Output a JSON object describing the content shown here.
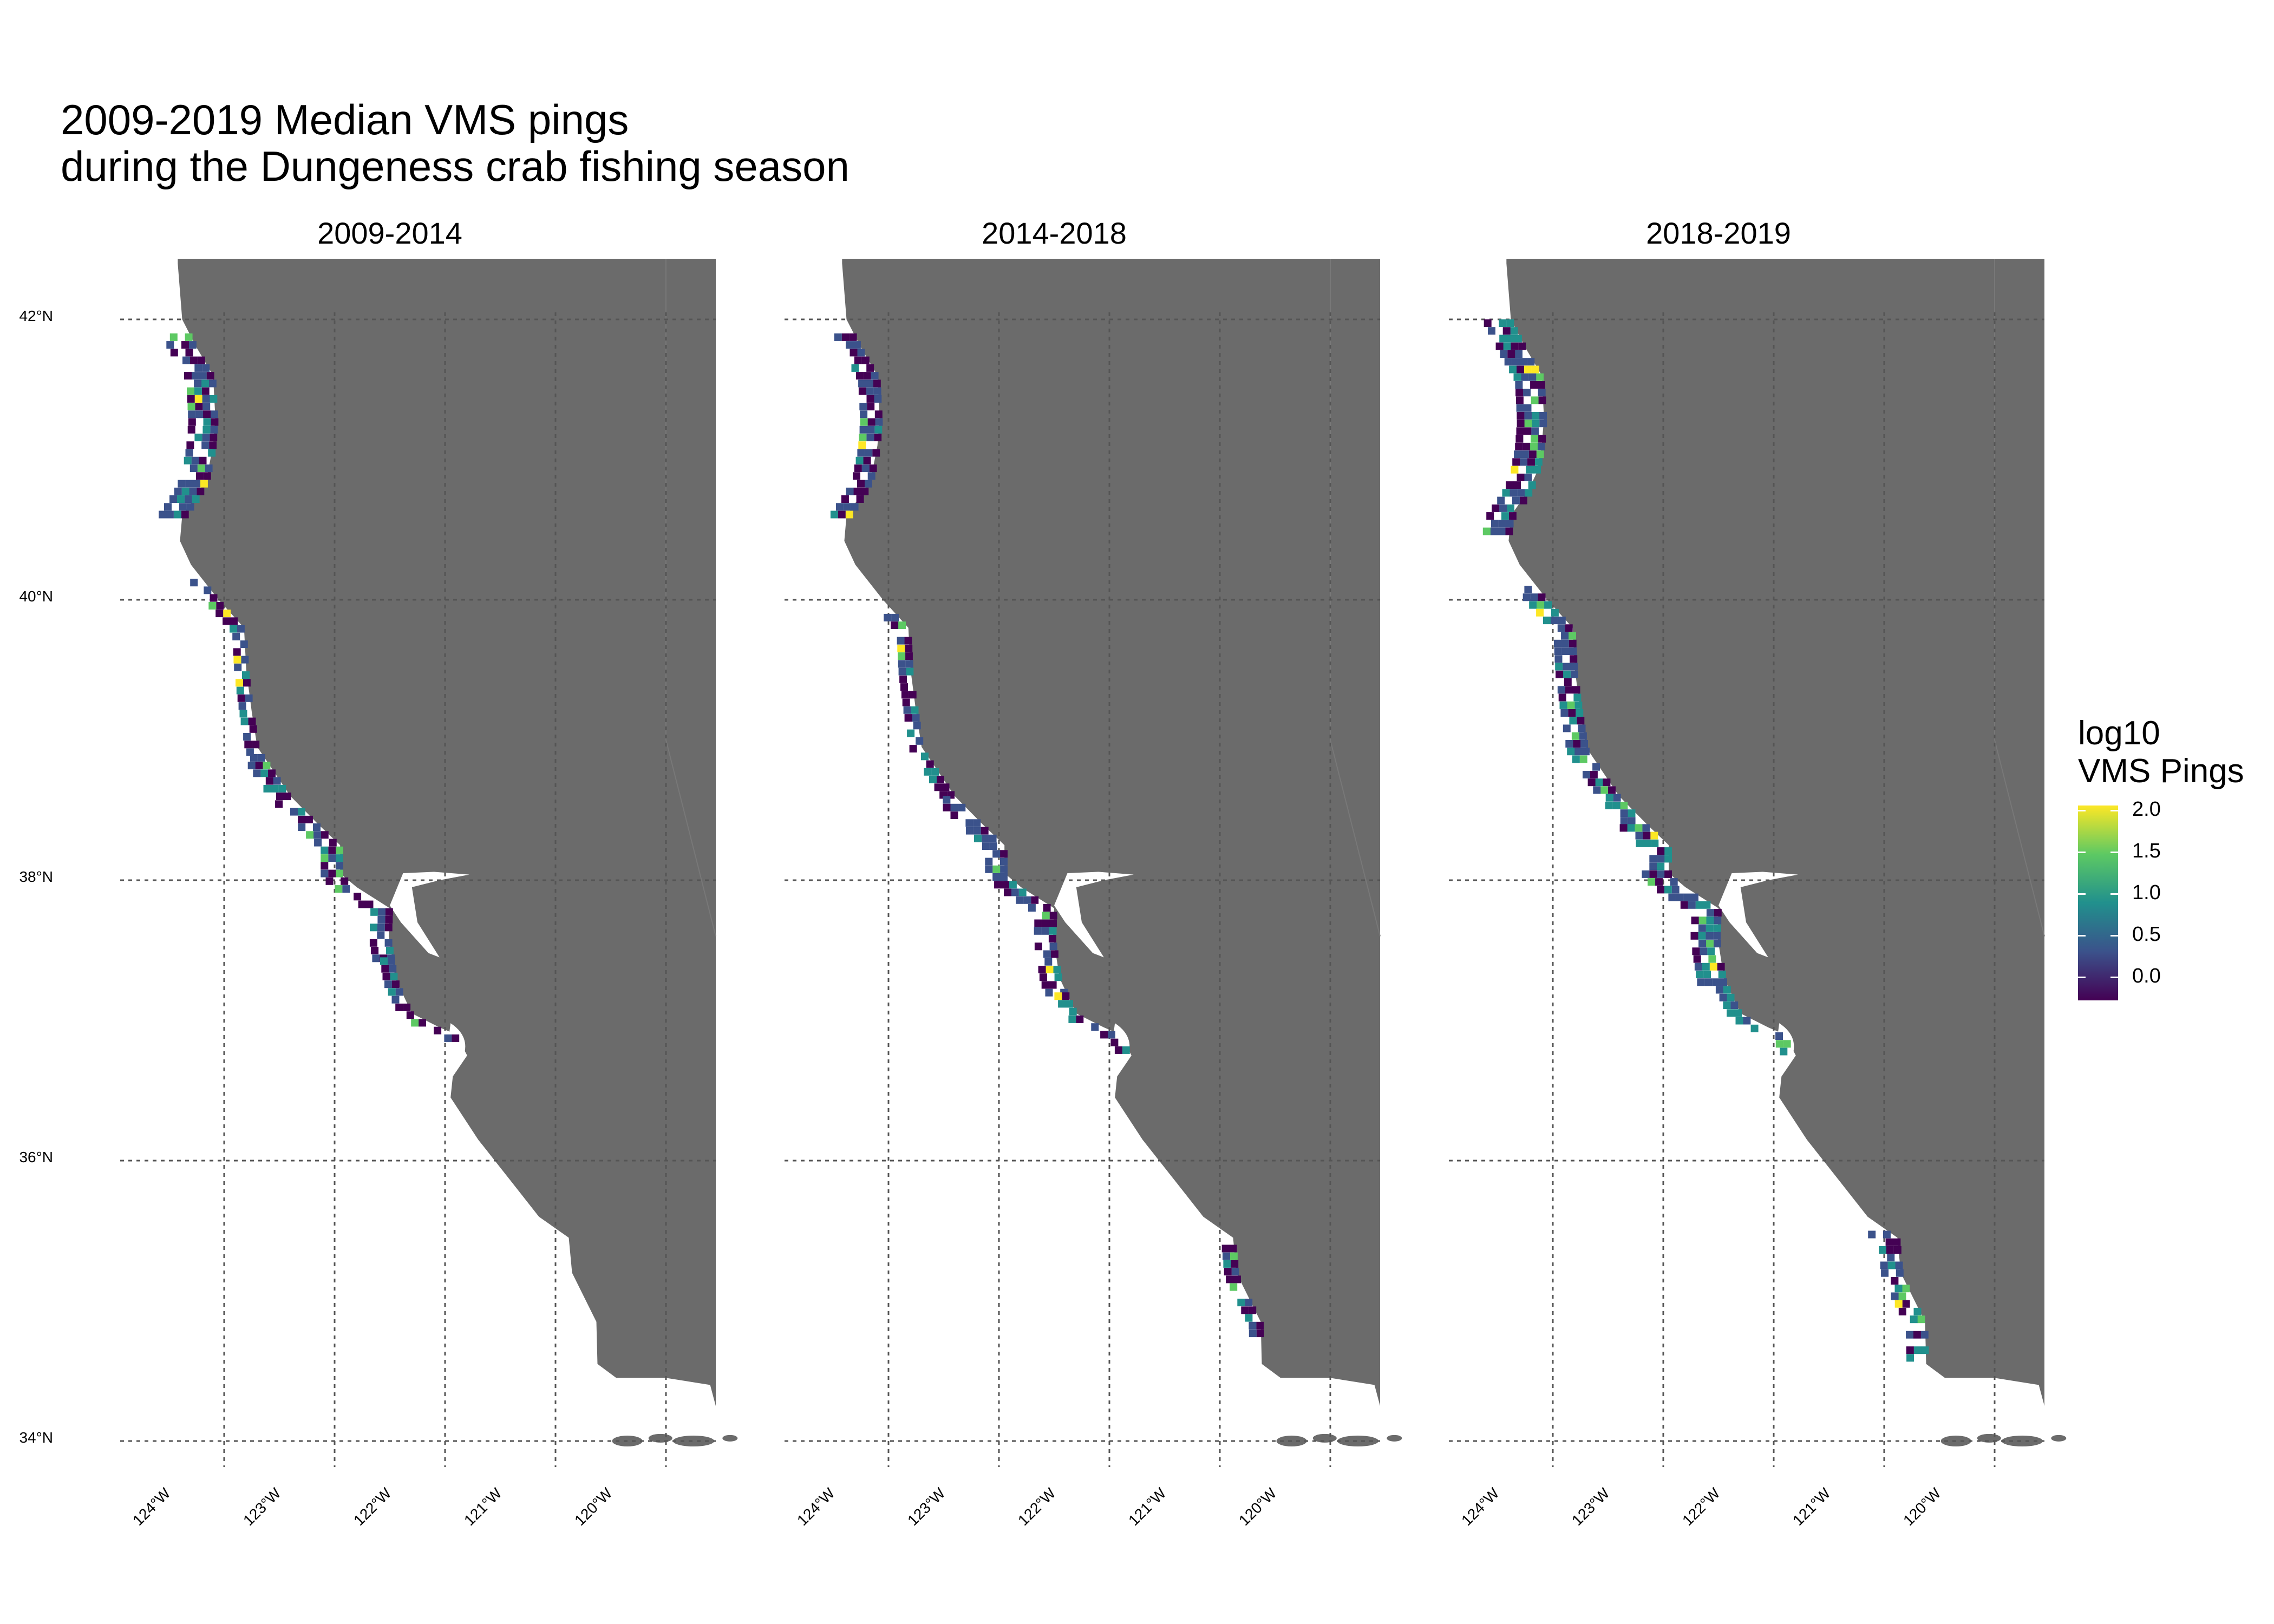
{
  "title": {
    "line1": "2009-2019 Median VMS pings",
    "line2": "during the Dungeness crab fishing season"
  },
  "facets": [
    {
      "label": "2009-2014"
    },
    {
      "label": "2014-2018"
    },
    {
      "label": "2018-2019"
    }
  ],
  "axes": {
    "y_ticks": [
      "42°N",
      "40°N",
      "38°N",
      "36°N",
      "34°N"
    ],
    "x_ticks": [
      "124°W",
      "123°W",
      "122°W",
      "121°W",
      "120°W"
    ]
  },
  "legend": {
    "title_line1": "log10",
    "title_line2": "VMS Pings",
    "ticks": [
      "2.0",
      "1.5",
      "1.0",
      "0.5",
      "0.0"
    ]
  },
  "colors": {
    "land": "#6b6b6b",
    "grid": "#555555",
    "scale": [
      "#440154",
      "#3b528b",
      "#21908d",
      "#5dc963",
      "#fde725"
    ]
  },
  "chart_data": {
    "type": "heatmap",
    "title": "2009-2019 Median VMS pings during the Dungeness crab fishing season",
    "xlabel": "",
    "ylabel": "",
    "facets": [
      "2009-2014",
      "2014-2018",
      "2018-2019"
    ],
    "xlim": [
      -124.5,
      -119.0
    ],
    "ylim": [
      34.0,
      42.4
    ],
    "x_ticks": [
      -124,
      -123,
      -122,
      -121,
      -120
    ],
    "y_ticks": [
      42,
      40,
      38,
      36,
      34
    ],
    "color_scale": {
      "name": "log10 VMS Pings",
      "min": 0.0,
      "max": 2.0,
      "palette": "viridis"
    },
    "grid": true,
    "legend": "right"
  }
}
